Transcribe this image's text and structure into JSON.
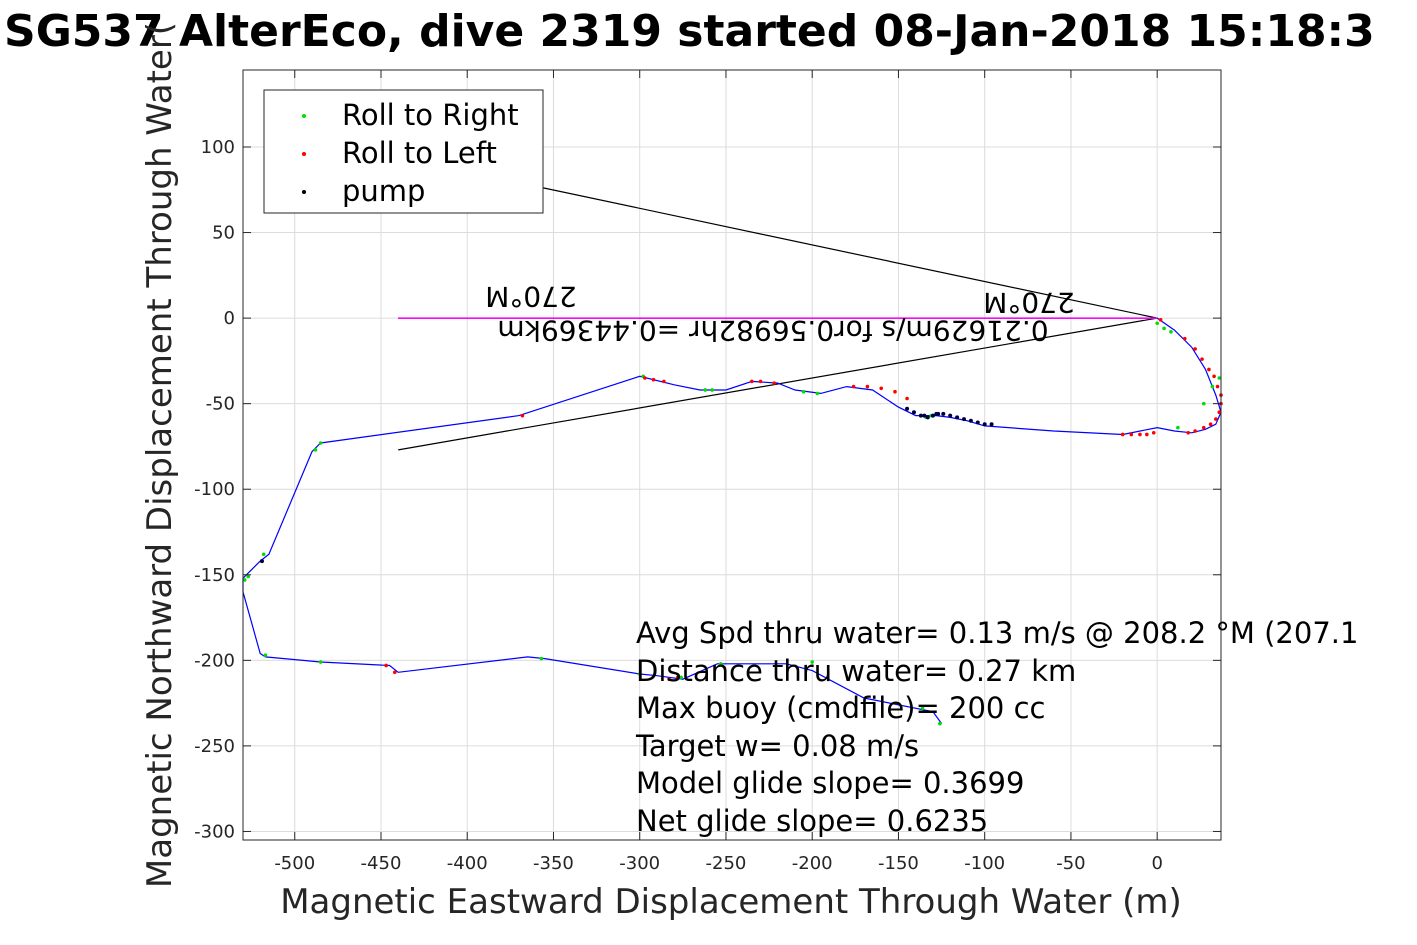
{
  "chart_data": {
    "type": "line",
    "title": "SG537 AlterEco, dive 2319 started 08-Jan-2018 15:18:3",
    "xlabel": "Magnetic Eastward Displacement Through Water (m)",
    "ylabel": "Magnetic Northward Displacement Through Water(",
    "xlim": [
      -530,
      37
    ],
    "ylim": [
      -305,
      145
    ],
    "xticks": [
      -500,
      -450,
      -400,
      -350,
      -300,
      -250,
      -200,
      -150,
      -100,
      -50,
      0
    ],
    "yticks": [
      -300,
      -250,
      -200,
      -150,
      -100,
      -50,
      0,
      50,
      100
    ],
    "grid": true,
    "legend": {
      "placement": "top-left",
      "entries": [
        {
          "label": "Roll to Right",
          "color": "#00dd00"
        },
        {
          "label": "Roll to Left",
          "color": "#ff0000"
        },
        {
          "label": "pump",
          "color": "#000000"
        }
      ]
    },
    "track": {
      "color": "#0000ff",
      "x": [
        0,
        10,
        20,
        28,
        34,
        37,
        37,
        34,
        28,
        20,
        10,
        0,
        -20,
        -60,
        -100,
        -110,
        -120,
        -128,
        -132,
        -140,
        -150,
        -165,
        -180,
        -195,
        -210,
        -220,
        -235,
        -250,
        -265,
        -280,
        -300,
        -370,
        -485,
        -490,
        -515,
        -520,
        -530,
        -530,
        -520,
        -517,
        -485,
        -445,
        -440,
        -365,
        -355,
        -300,
        -290,
        -275,
        -255,
        -215,
        -200,
        -170,
        -130,
        -125
      ],
      "y": [
        0,
        -7,
        -17,
        -30,
        -45,
        -55,
        -55,
        -62,
        -65,
        -67,
        -66,
        -64,
        -68,
        -66,
        -63,
        -60,
        -58,
        -57,
        -57,
        -57,
        -52,
        -42,
        -40,
        -44,
        -42,
        -38,
        -37,
        -42,
        -42,
        -39,
        -34,
        -57,
        -73,
        -78,
        -138,
        -142,
        -152,
        -160,
        -196,
        -198,
        -201,
        -203,
        -207,
        -198,
        -199,
        -208,
        -209,
        -211,
        -202,
        -202,
        -206,
        -222,
        -230,
        -237
      ]
    },
    "roll_right_points": {
      "x": [
        8,
        4,
        0,
        12,
        27,
        32,
        36,
        -134,
        -131,
        -258,
        -262,
        -197,
        -205,
        -298,
        -488,
        -485,
        -518,
        -527,
        -529,
        -517,
        -485,
        -357,
        -300,
        -276,
        -253,
        -200,
        -136,
        -126
      ],
      "y": [
        -8,
        -6,
        -3,
        -64,
        -50,
        -40,
        -35,
        -58,
        -57,
        -42,
        -42,
        -44,
        -43,
        -34,
        -77,
        -73,
        -138,
        -151,
        -153,
        -197,
        -201,
        -199,
        -208,
        -210,
        -202,
        -201,
        -228,
        -237
      ]
    },
    "roll_left_points": {
      "x": [
        2,
        16,
        22,
        26,
        30,
        33,
        35,
        37,
        37,
        36,
        34,
        31,
        27,
        22,
        18,
        -2,
        -6,
        -10,
        -15,
        -20,
        -145,
        -152,
        -160,
        -168,
        -176,
        -230,
        -235,
        -222,
        -297,
        -292,
        -286,
        -368,
        -442,
        -447,
        -283,
        -278
      ],
      "y": [
        -1,
        -12,
        -18,
        -24,
        -30,
        -34,
        -40,
        -45,
        -50,
        -55,
        -59,
        -62,
        -64,
        -66,
        -67,
        -67,
        -68,
        -68,
        -68,
        -68,
        -47,
        -43,
        -41,
        -40,
        -40,
        -37,
        -37,
        -38,
        -35,
        -36,
        -37,
        -57,
        -207,
        -203,
        -211,
        -210
      ]
    },
    "pump_points": {
      "x": [
        -145,
        -141,
        -137,
        -133,
        -130,
        -127,
        -124,
        -120,
        -116,
        -112,
        -108,
        -104,
        -100,
        -96,
        -128,
        -519,
        -135
      ],
      "y": [
        -53,
        -55,
        -57,
        -58,
        -57,
        -56,
        -56,
        -57,
        -58,
        -59,
        -60,
        -61,
        -62,
        -62,
        -56,
        -142,
        -57
      ]
    },
    "magenta_line": {
      "color": "#ff00ff",
      "x": [
        -440,
        0
      ],
      "y": [
        0,
        0
      ]
    },
    "black_lines": [
      {
        "x": [
          -360,
          0
        ],
        "y": [
          77,
          0
        ]
      },
      {
        "x": [
          -440,
          0
        ],
        "y": [
          -77,
          0
        ]
      },
      {
        "x": [
          -440,
          0
        ],
        "y": [
          0,
          0
        ]
      }
    ],
    "annotations": {
      "heading_left": "270°M",
      "heading_right": "270°M",
      "speed_note": "0.21629m/s for0.56982hr =0.44369km"
    },
    "stats": [
      "Avg Spd thru water=  0.13 m/s @ 208.2 °M (207.1",
      "Distance thru water=  0.27 km",
      "Max buoy (cmdfile)= 200 cc",
      "Target w= 0.08 m/s",
      "Model glide slope= 0.3699",
      "Net glide slope= 0.6235"
    ]
  }
}
